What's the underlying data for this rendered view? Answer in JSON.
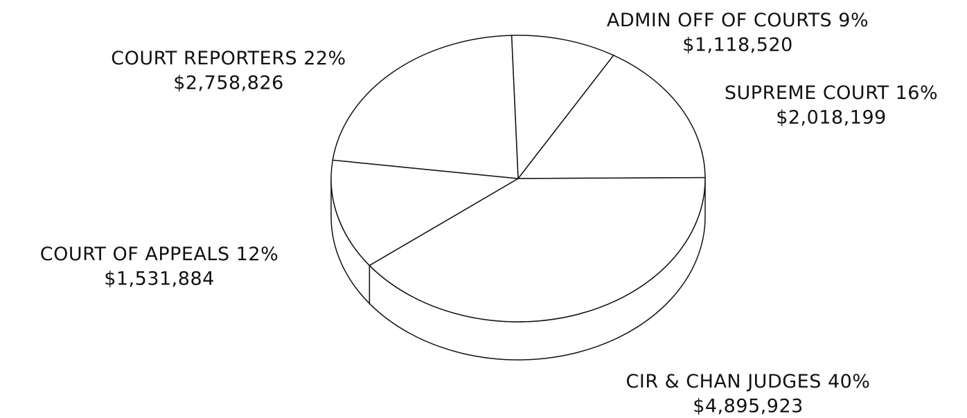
{
  "chart_data": {
    "type": "pie3d",
    "categories": [
      "ADMIN OFF OF COURTS",
      "SUPREME COURT",
      "CIR & CHAN JUDGES",
      "COURT OF APPEALS",
      "COURT REPORTERS"
    ],
    "percent_labels": [
      "9%",
      "16%",
      "40%",
      "12%",
      "22%"
    ],
    "values": [
      1118520,
      2018199,
      4895923,
      1531884,
      2758826
    ],
    "value_labels": [
      "$1,118,520",
      "$2,018,199",
      "$4,895,923",
      "$1,531,884",
      "$2,758,826"
    ],
    "color": "#ffffff"
  }
}
